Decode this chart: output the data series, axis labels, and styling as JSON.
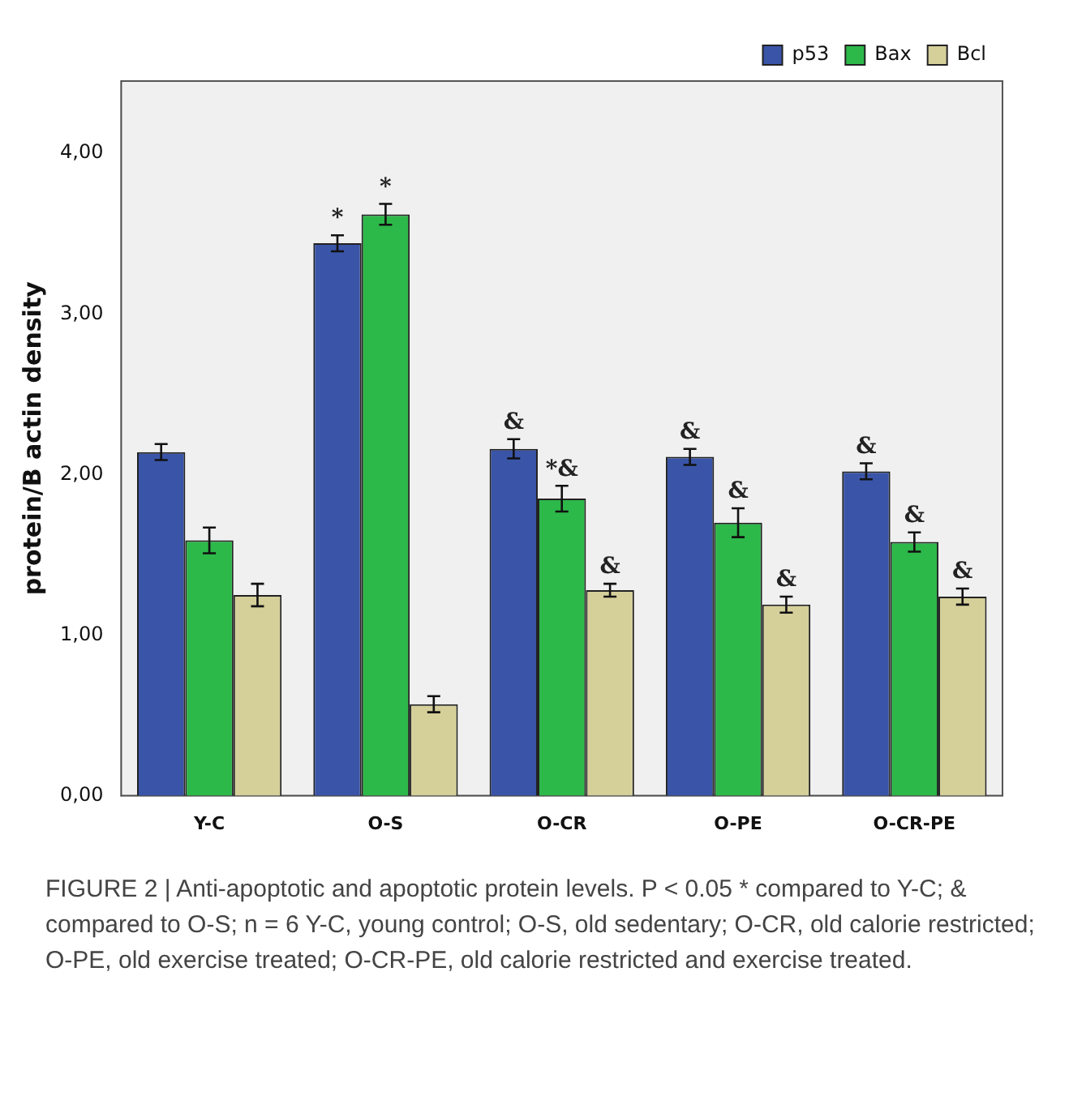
{
  "chart_data": {
    "type": "bar",
    "ylabel": "protein/B actin density",
    "categories": [
      "Y-C",
      "O-S",
      "O-CR",
      "O-PE",
      "O-CR-PE"
    ],
    "series": [
      {
        "name": "p53",
        "color": "#3a55a8",
        "values": [
          2.14,
          3.44,
          2.16,
          2.11,
          2.02
        ],
        "errors": [
          0.05,
          0.05,
          0.06,
          0.05,
          0.05
        ],
        "value_labels": [
          null,
          "*",
          "&",
          "&",
          "&"
        ]
      },
      {
        "name": "Bax",
        "color": "#2db84a",
        "values": [
          1.59,
          3.62,
          1.85,
          1.7,
          1.58
        ],
        "errors": [
          0.08,
          0.065,
          0.08,
          0.09,
          0.06
        ],
        "value_labels": [
          null,
          "*",
          "*&",
          "&",
          "&"
        ]
      },
      {
        "name": "Bcl",
        "color": "#d5cf9a",
        "values": [
          1.25,
          0.57,
          1.28,
          1.19,
          1.24
        ],
        "errors": [
          0.07,
          0.05,
          0.04,
          0.05,
          0.05
        ],
        "value_labels": [
          null,
          null,
          "&",
          "&",
          "&"
        ]
      }
    ],
    "ylim": [
      0,
      4.45
    ],
    "yticks": [
      {
        "value": 0,
        "label": "0,00"
      },
      {
        "value": 1,
        "label": "1,00"
      },
      {
        "value": 2,
        "label": "2,00"
      },
      {
        "value": 3,
        "label": "3,00"
      },
      {
        "value": 4,
        "label": "4,00"
      }
    ],
    "grid": false,
    "legend": "top right",
    "annotations": [
      "FIGURE 2 | Anti-apoptotic and apoptotic protein levels. P < 0.05 * compared to Y-C; & compared to O-S; n = 6 Y-C, young control; O-S, old sedentary; O-CR, old calorie restricted; O-PE, old exercise treated; O-CR-PE, old calorie restricted and exercise treated."
    ]
  }
}
